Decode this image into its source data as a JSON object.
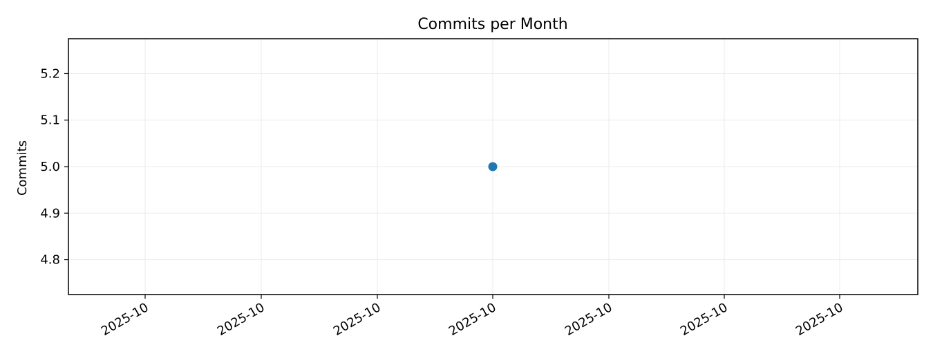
{
  "chart_data": {
    "type": "scatter",
    "title": "Commits per Month",
    "xlabel": "",
    "ylabel": "Commits",
    "x_tick_labels": [
      "2025-10",
      "2025-10",
      "2025-10",
      "2025-10",
      "2025-10",
      "2025-10",
      "2025-10"
    ],
    "y_ticks": [
      4.8,
      4.9,
      5.0,
      5.1,
      5.2
    ],
    "y_tick_labels": [
      "4.8",
      "4.9",
      "5.0",
      "5.1",
      "5.2"
    ],
    "ylim": [
      4.725,
      5.275
    ],
    "series": [
      {
        "x": [
          "2025-10"
        ],
        "values": [
          5.0
        ]
      }
    ],
    "grid": true,
    "colors": {
      "point": "#1f77b4",
      "grid": "#ebebeb",
      "frame": "#000000"
    }
  }
}
